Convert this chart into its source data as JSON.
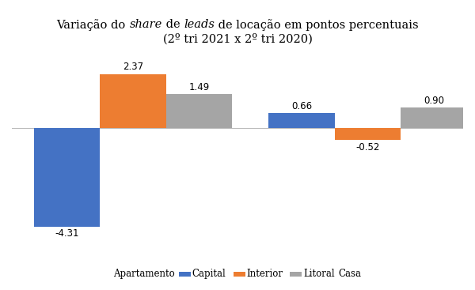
{
  "title_line1_parts": [
    [
      "Variação do ",
      false
    ],
    [
      "share",
      true
    ],
    [
      " de ",
      false
    ],
    [
      "leads",
      true
    ],
    [
      " de locação em pontos percentuais",
      false
    ]
  ],
  "title_line2": "(2º tri 2021 x 2º tri 2020)",
  "categories": [
    "Apartamento",
    "Casa"
  ],
  "series_names": [
    "Capital",
    "Interior",
    "Litoral"
  ],
  "series_values": [
    [
      -4.31,
      0.66
    ],
    [
      2.37,
      -0.52
    ],
    [
      1.49,
      0.9
    ]
  ],
  "colors": [
    "#4472C4",
    "#ED7D31",
    "#A5A5A5"
  ],
  "bar_width": 0.18,
  "group_centers": [
    0.28,
    0.92
  ],
  "xlim": [
    -0.05,
    1.18
  ],
  "ylim": [
    -5.3,
    3.2
  ],
  "label_fontsize": 8.5,
  "title_fontsize": 10.5,
  "legend_fontsize": 8.5,
  "background_color": "#FFFFFF"
}
